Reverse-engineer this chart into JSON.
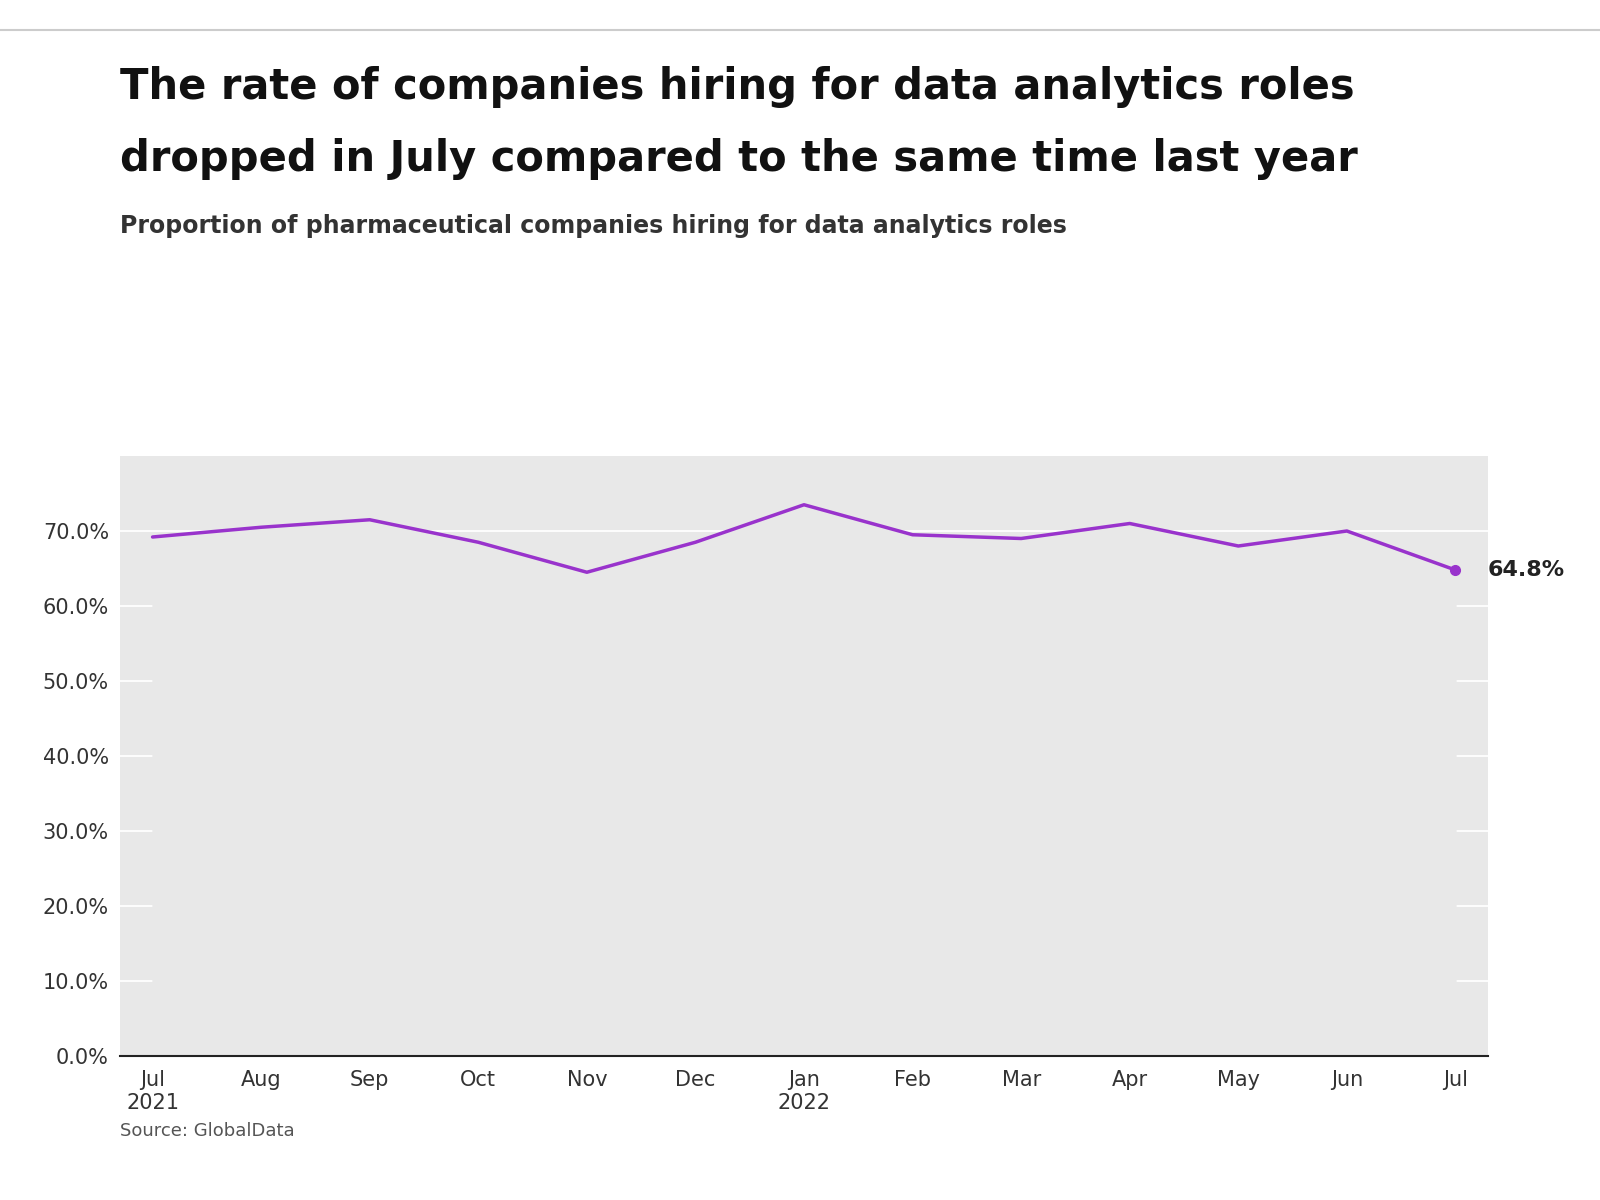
{
  "title_line1": "The rate of companies hiring for data analytics roles",
  "title_line2": "dropped in July compared to the same time last year",
  "subtitle": "Proportion of pharmaceutical companies hiring for data analytics roles",
  "source": "Source: GlobalData",
  "x_labels": [
    "Jul\n2021",
    "Aug",
    "Sep",
    "Oct",
    "Nov",
    "Dec",
    "Jan\n2022",
    "Feb",
    "Mar",
    "Apr",
    "May",
    "Jun",
    "Jul"
  ],
  "values": [
    69.2,
    70.5,
    71.5,
    68.5,
    64.5,
    68.5,
    73.5,
    69.5,
    69.0,
    71.0,
    68.0,
    70.0,
    64.8
  ],
  "last_label": "64.8%",
  "line_color": "#9933cc",
  "fill_color": "#e8e8e8",
  "background_color": "#e8e8e8",
  "outer_background": "#ffffff",
  "ylim": [
    0,
    80
  ],
  "yticks": [
    0,
    10,
    20,
    30,
    40,
    50,
    60,
    70
  ],
  "title_fontsize": 30,
  "subtitle_fontsize": 17,
  "tick_fontsize": 15,
  "source_fontsize": 13,
  "annotation_fontsize": 16,
  "line_width": 2.5,
  "marker_size": 7,
  "top_rule_color": "#cccccc"
}
